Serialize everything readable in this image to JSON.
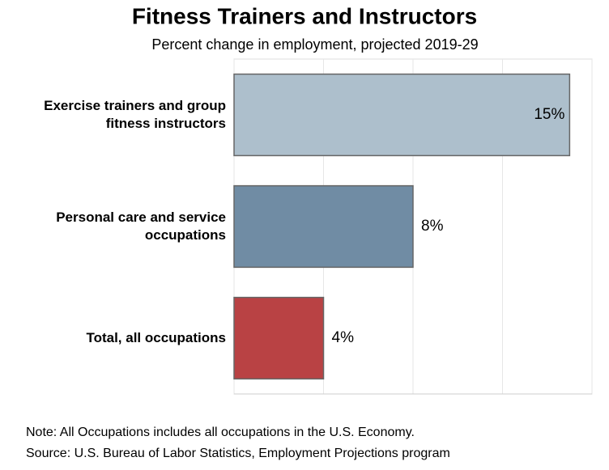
{
  "chart_data": {
    "type": "bar",
    "orientation": "horizontal",
    "title": "Fitness Trainers and Instructors",
    "subtitle": "Percent change in employment, projected 2019-29",
    "categories": [
      "Exercise trainers and group fitness instructors",
      "Personal care and service occupations",
      "Total, all occupations"
    ],
    "values": [
      15,
      8,
      4
    ],
    "value_labels": [
      "15%",
      "8%",
      "4%"
    ],
    "colors": [
      "#adbfcc",
      "#708ca4",
      "#b94244"
    ],
    "xlim": [
      0,
      16
    ],
    "xticks": [
      0,
      4,
      8,
      12,
      16
    ],
    "grid": true,
    "notes": [
      "Note: All Occupations includes all occupations in the U.S. Economy.",
      "Source: U.S. Bureau of Labor Statistics, Employment Projections program"
    ]
  }
}
